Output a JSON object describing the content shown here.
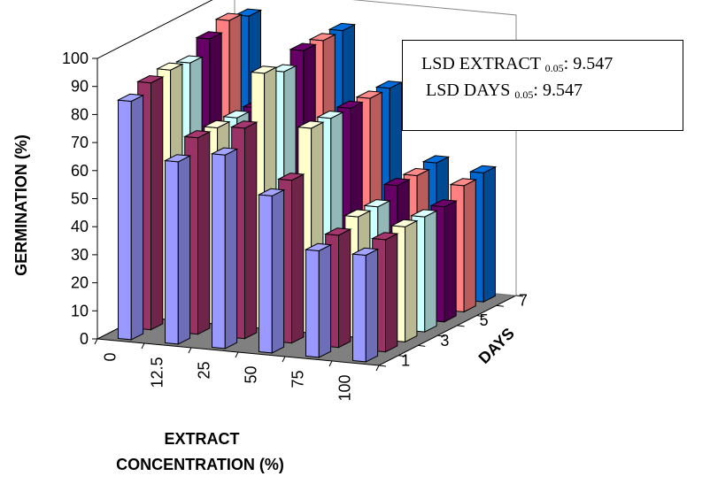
{
  "chart_data": {
    "type": "bar",
    "subtype": "3d-grouped",
    "title": "",
    "xlabel_line1": "EXTRACT",
    "xlabel_line2": "CONCENTRATION (%)",
    "ylabel": "GERMINATION (%)",
    "zlabel": "DAYS",
    "categories": [
      "0",
      "12.5",
      "25",
      "50",
      "75",
      "100"
    ],
    "yticks": [
      "0",
      "10",
      "20",
      "30",
      "40",
      "50",
      "60",
      "70",
      "80",
      "90",
      "100"
    ],
    "ylim": [
      0,
      100
    ],
    "zticks": [
      "1",
      "3",
      "5",
      "7"
    ],
    "series": [
      {
        "color": "#9999ff",
        "values": [
          85,
          65,
          69,
          56,
          38,
          38
        ]
      },
      {
        "color": "#993366",
        "values": [
          88,
          70,
          75,
          58,
          40,
          40
        ]
      },
      {
        "color": "#ffffcc",
        "values": [
          89,
          70,
          91,
          73,
          43,
          41
        ]
      },
      {
        "color": "#ccffff",
        "values": [
          88,
          70,
          88,
          73,
          43,
          41
        ]
      },
      {
        "color": "#660066",
        "values": [
          93,
          70,
          92,
          73,
          47,
          41
        ]
      },
      {
        "color": "#ff8080",
        "values": [
          96,
          73,
          92,
          73,
          47,
          45
        ]
      },
      {
        "color": "#0066cc",
        "values": [
          94,
          70,
          92,
          73,
          48,
          46
        ]
      }
    ],
    "grid": false,
    "legend": "none"
  },
  "annotation": {
    "lsd_extract_label": "LSD EXTRACT",
    "lsd_extract_sub": "0.05",
    "lsd_extract_value": ":  9.547",
    "lsd_days_label": "LSD DAYS",
    "lsd_days_sub": "0.05",
    "lsd_days_value": ":  9.547"
  }
}
